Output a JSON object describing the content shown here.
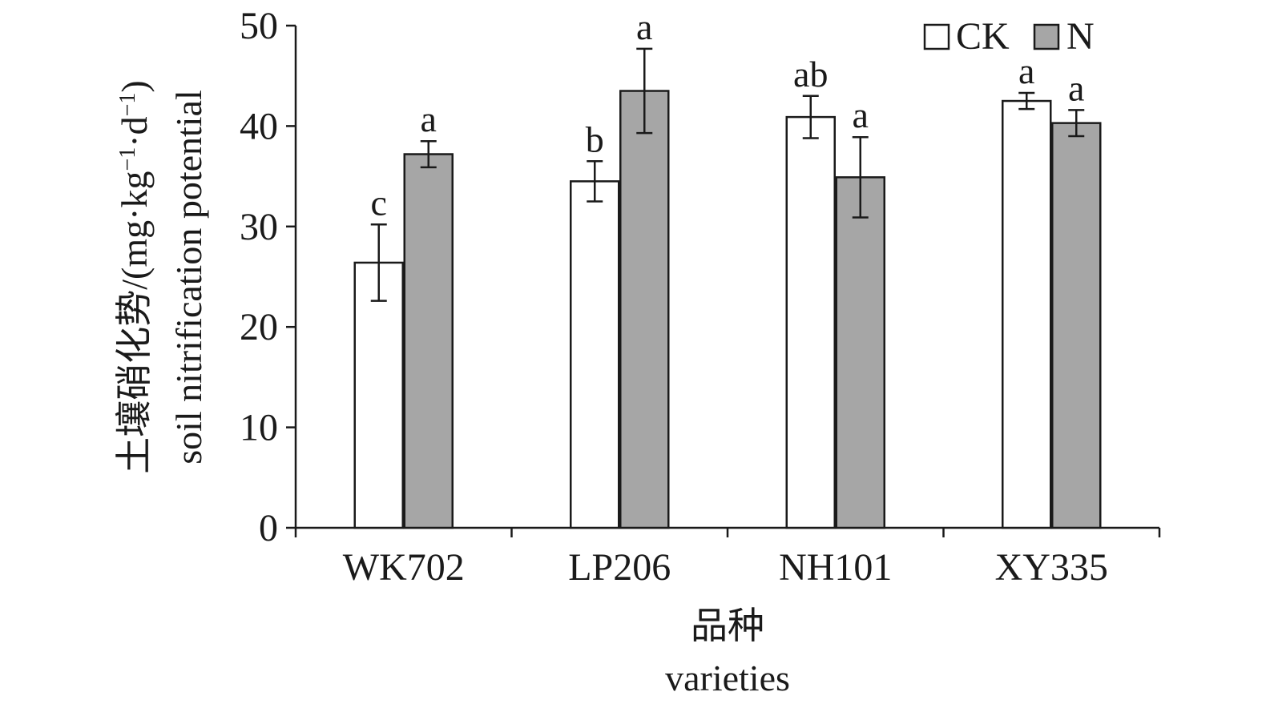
{
  "chart_data": {
    "type": "bar",
    "categories": [
      "WK702",
      "LP206",
      "NH101",
      "XY335"
    ],
    "series": [
      {
        "name": "CK",
        "color": "#ffffff",
        "values": [
          26.4,
          34.5,
          40.9,
          42.5
        ],
        "errors": [
          3.8,
          2.0,
          2.1,
          0.8
        ],
        "letters": [
          "c",
          "b",
          "ab",
          "a"
        ]
      },
      {
        "name": "N",
        "color": "#a6a6a6",
        "values": [
          37.2,
          43.5,
          34.9,
          40.3
        ],
        "errors": [
          1.3,
          4.2,
          4.0,
          1.3
        ],
        "letters": [
          "a",
          "a",
          "a",
          "a"
        ]
      }
    ],
    "ylim": [
      0,
      50
    ],
    "yticks": [
      0,
      10,
      20,
      30,
      40,
      50
    ],
    "ylabel_cn": "土壤硝化势/(mg·kg",
    "ylabel_sup1": "−1",
    "ylabel_mid": "·d",
    "ylabel_sup2": "−1",
    "ylabel_end": ")",
    "ylabel_en": "soil nitrification potential",
    "xlabel_cn": "品种",
    "xlabel_en": "varieties",
    "legend_position": "top-right"
  }
}
